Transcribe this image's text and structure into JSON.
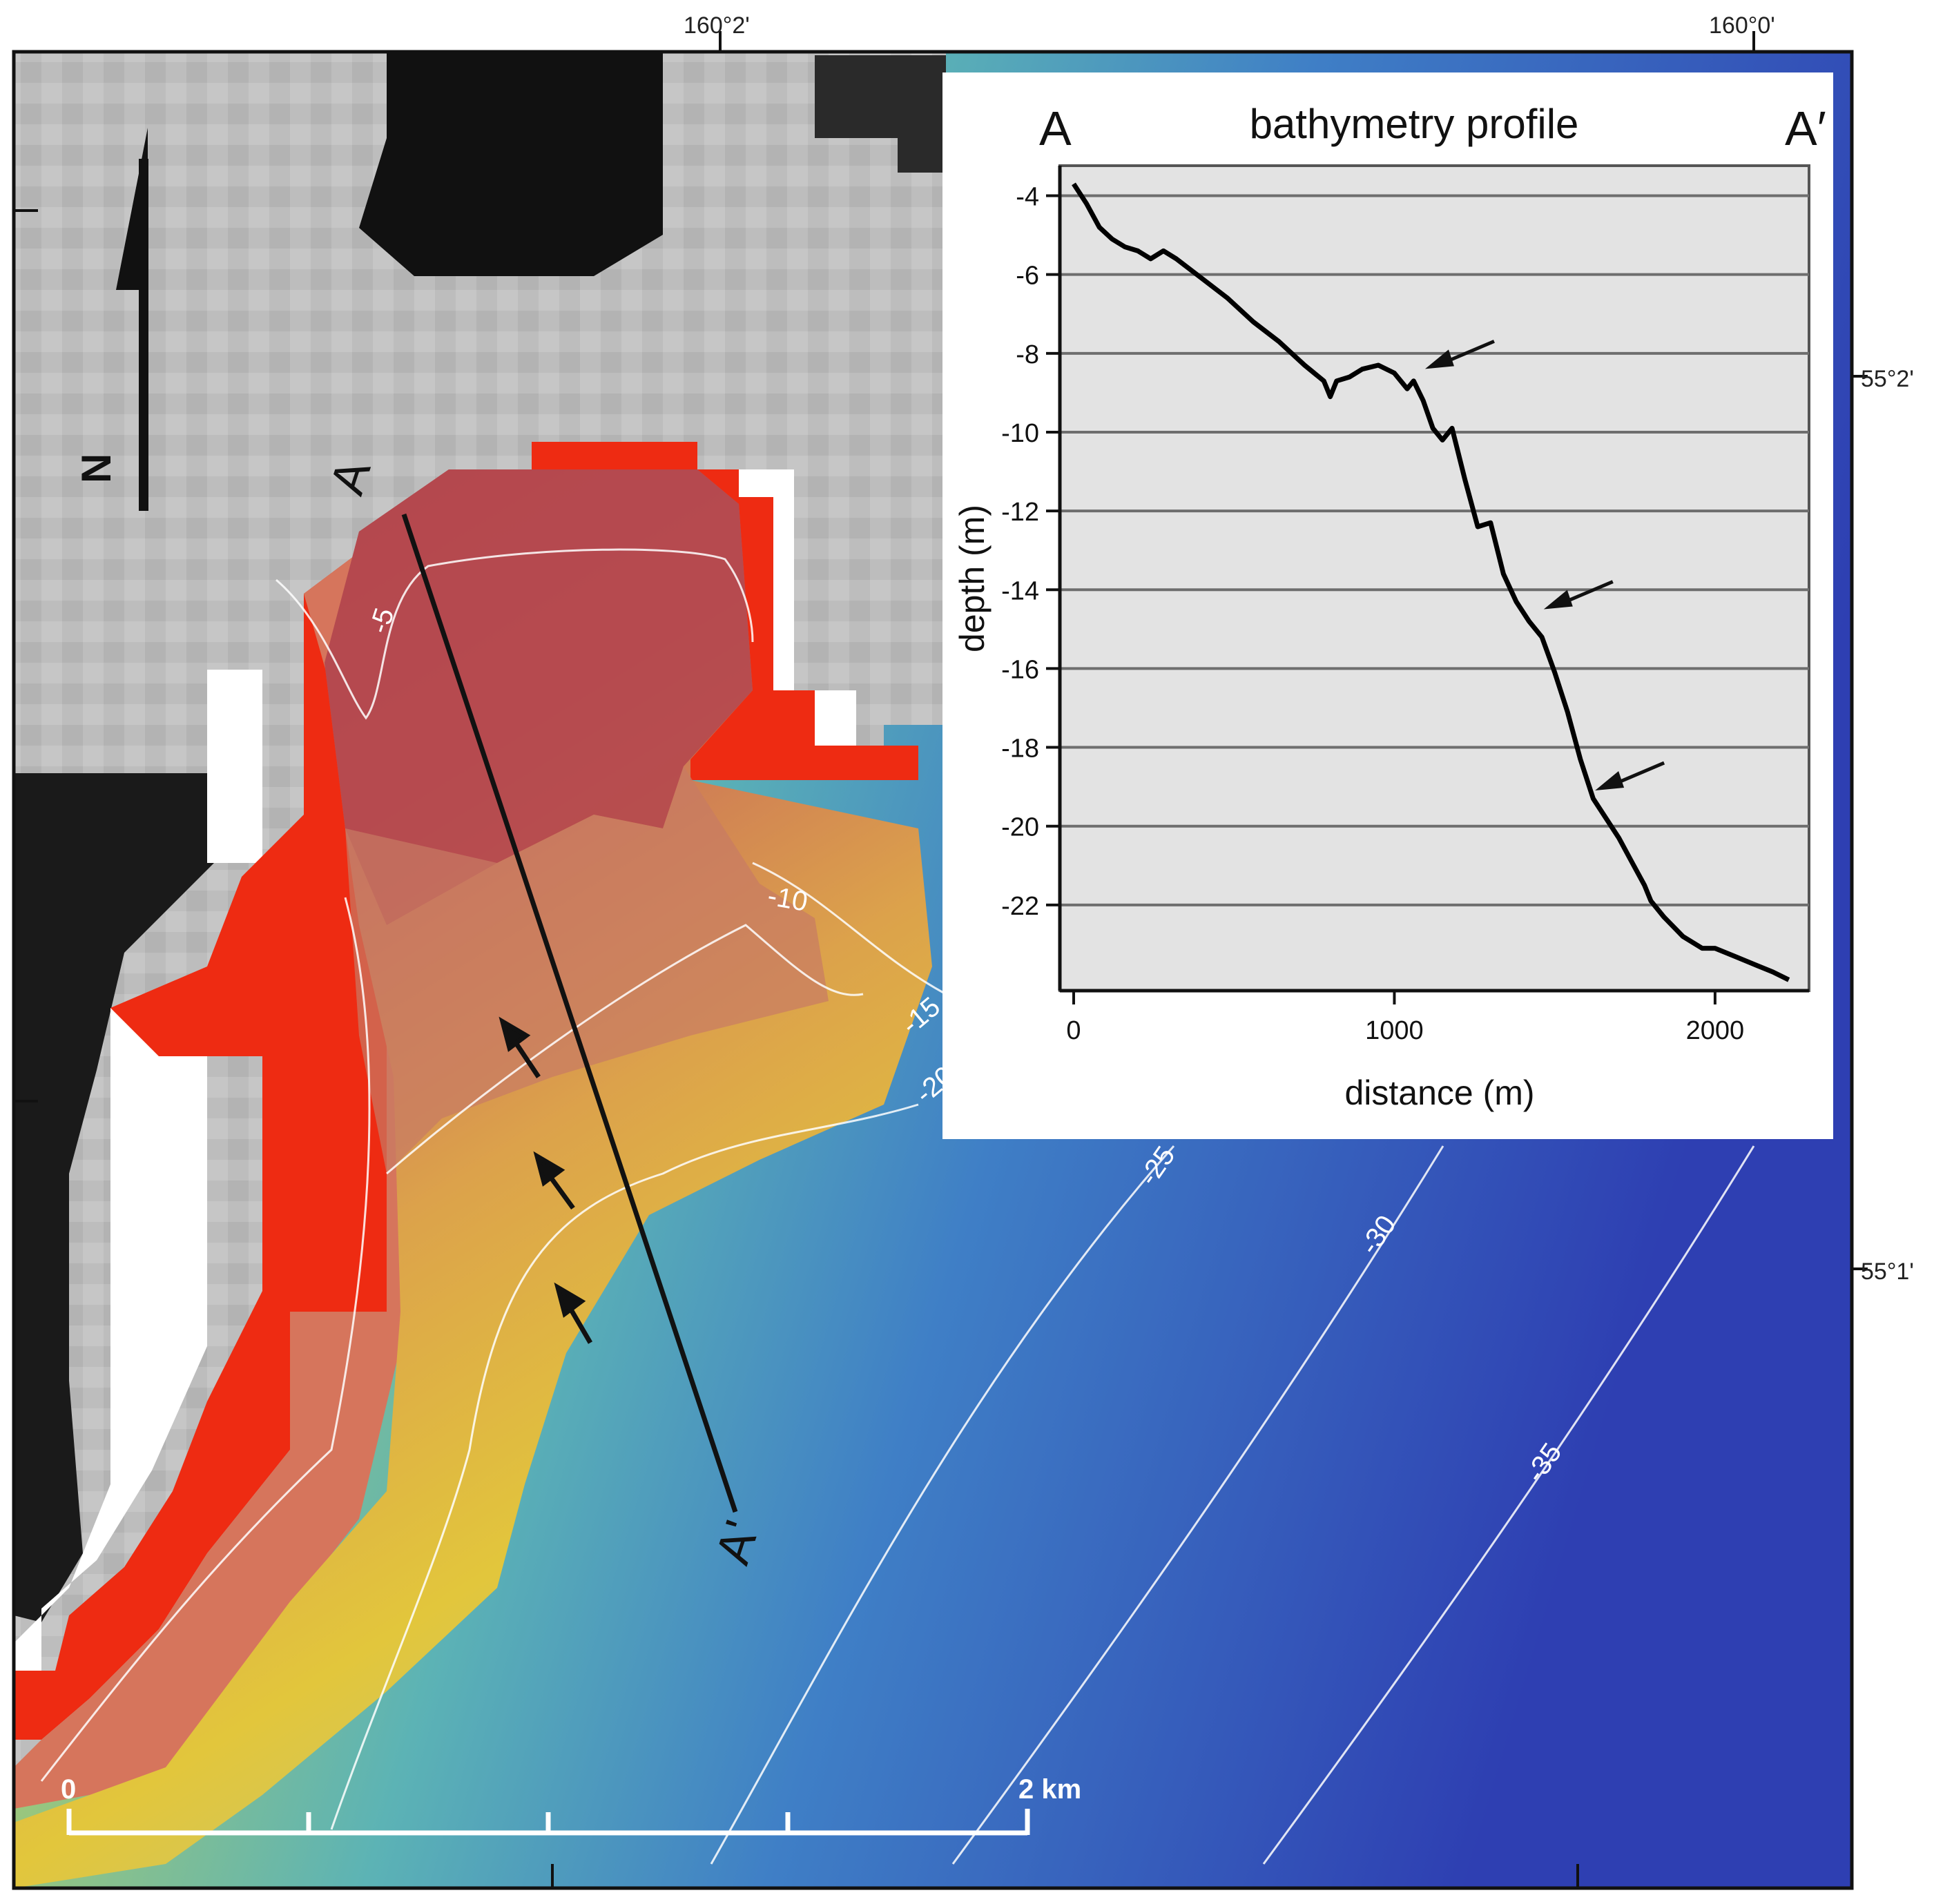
{
  "map": {
    "coords_top": [
      "160°2'",
      "160°0'"
    ],
    "coords_right": [
      "55°2'",
      "55°1'"
    ],
    "contour_labels": [
      "-5",
      "-10",
      "-15",
      "-20",
      "-25",
      "-30",
      "-35"
    ],
    "north_label": "N",
    "section": {
      "start": "A",
      "end": "A'"
    },
    "scale_bar": {
      "start": "0",
      "end": "2 km"
    },
    "colors": {
      "shallow": "#c8504a",
      "mid": "#e8c93c",
      "deep": "#2b3fb0",
      "land_mask": "#ff1a0a",
      "land": "#9a9a9a"
    },
    "icons": [
      "north-arrow-icon",
      "feature-arrow-icon"
    ]
  },
  "inset": {
    "title": "bathymetry profile",
    "left_letter": "A",
    "right_letter": "A′"
  },
  "chart_data": {
    "type": "line",
    "title": "bathymetry profile",
    "xlabel": "distance (m)",
    "ylabel": "depth (m)",
    "xlim": [
      0,
      2250
    ],
    "ylim": [
      -24,
      -3.5
    ],
    "x_ticks": [
      "0",
      "1000",
      "2000"
    ],
    "y_ticks": [
      "-4",
      "-6",
      "-8",
      "-10",
      "-12",
      "-14",
      "-16",
      "-18",
      "-20",
      "-22"
    ],
    "grid": "horizontal",
    "series": [
      {
        "x": [
          0,
          40,
          80,
          120,
          160,
          200,
          240,
          280,
          320,
          400,
          480,
          560,
          640,
          720,
          780,
          800,
          820,
          860,
          900,
          950,
          1000,
          1040,
          1060,
          1090,
          1120,
          1150,
          1180,
          1220,
          1260,
          1300,
          1340,
          1380,
          1420,
          1460,
          1500,
          1540,
          1580,
          1620,
          1660,
          1700,
          1740,
          1780,
          1800,
          1840,
          1900,
          1960,
          2000,
          2060,
          2120,
          2180,
          2230
        ],
        "y": [
          -3.7,
          -4.2,
          -4.8,
          -5.1,
          -5.3,
          -5.4,
          -5.6,
          -5.4,
          -5.6,
          -6.1,
          -6.6,
          -7.2,
          -7.7,
          -8.3,
          -8.7,
          -9.1,
          -8.7,
          -8.6,
          -8.4,
          -8.3,
          -8.5,
          -8.9,
          -8.7,
          -9.2,
          -9.9,
          -10.2,
          -9.9,
          -11.2,
          -12.4,
          -12.3,
          -13.6,
          -14.3,
          -14.8,
          -15.2,
          -16.1,
          -17.1,
          -18.3,
          -19.3,
          -19.8,
          -20.3,
          -20.9,
          -21.5,
          -21.9,
          -22.3,
          -22.8,
          -23.1,
          -23.1,
          -23.3,
          -23.5,
          -23.7,
          -23.9
        ]
      }
    ],
    "annotations": [
      {
        "type": "arrow",
        "x": 1070,
        "y": -8.5
      },
      {
        "type": "arrow",
        "x": 1440,
        "y": -14.6
      },
      {
        "type": "arrow",
        "x": 1600,
        "y": -19.2
      }
    ]
  }
}
